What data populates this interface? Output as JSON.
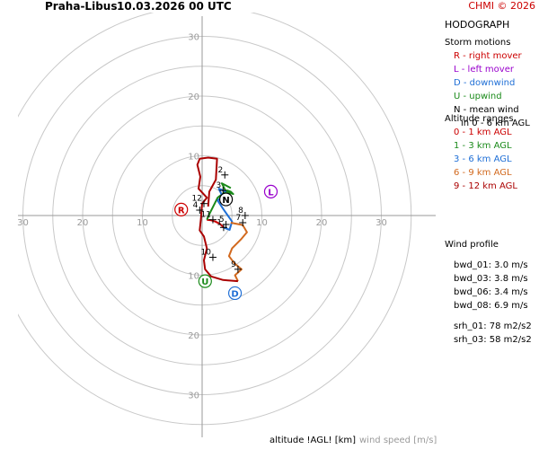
{
  "header": {
    "station": "Praha-Libus",
    "datetime": "10.03.2026 00 UTC",
    "copyright": "CHMI © 2026"
  },
  "panel": {
    "title": "HODOGRAPH",
    "storm_motions_title": "Storm motions",
    "storm_motions": [
      {
        "text": "R - right mover",
        "color": "#cc0000"
      },
      {
        "text": "L - left mover",
        "color": "#9900cc"
      },
      {
        "text": "D - downwind",
        "color": "#1f6fd6"
      },
      {
        "text": "U - upwind",
        "color": "#1a8a1a"
      },
      {
        "text": "N - mean wind",
        "color": "#000000"
      }
    ],
    "mean_wind_note": "in 0 - 6 km AGL",
    "altitude_title": "Altitude ranges",
    "altitude_ranges": [
      {
        "text": "0 - 1 km AGL",
        "color": "#cc0000"
      },
      {
        "text": "1 - 3 km AGL",
        "color": "#1a8a1a"
      },
      {
        "text": "3 - 6 km AGL",
        "color": "#1f6fd6"
      },
      {
        "text": "6 - 9 km AGL",
        "color": "#d2691e"
      },
      {
        "text": "9 - 12 km AGL",
        "color": "#aa0000"
      }
    ],
    "wind_profile_title": "Wind profile",
    "wind_profile": [
      "bwd_01: 3.0 m/s",
      "bwd_03: 3.8 m/s",
      "bwd_06: 3.4 m/s",
      "bwd_08: 6.9 m/s"
    ],
    "srh": [
      "srh_01: 78 m2/s2",
      "srh_03: 58 m2/s2"
    ]
  },
  "footer": {
    "altitude_label": "altitude !AGL! [km]",
    "wind_speed_label": "wind speed [m/s]"
  },
  "chart_data": {
    "type": "line",
    "rings": [
      5,
      10,
      15,
      20,
      25,
      30,
      35
    ],
    "ring_labels": [
      "10",
      "20",
      "30"
    ],
    "axis_tick_labels": {
      "x_left": [
        "30",
        "20",
        "10"
      ],
      "x_right": [
        "10",
        "20",
        "30"
      ],
      "y_up": [
        "10",
        "20",
        "30"
      ],
      "y_down": [
        "10",
        "20",
        "30"
      ]
    },
    "series": [
      {
        "range": "0-1",
        "color": "#cc0000",
        "points": [
          [
            0.8,
            -0.7
          ],
          [
            1.5,
            -0.8
          ],
          [
            2.2,
            -1.0
          ],
          [
            3.0,
            -1.4
          ],
          [
            3.6,
            -2.0
          ]
        ]
      },
      {
        "range": "1-3",
        "color": "#1a8a1a",
        "points": [
          [
            0.8,
            -0.7
          ],
          [
            1.3,
            0.4
          ],
          [
            2.6,
            3.0
          ],
          [
            4.2,
            4.2
          ],
          [
            4.8,
            4.0
          ],
          [
            5.2,
            3.6
          ],
          [
            4.0,
            4.0
          ],
          [
            3.3,
            5.4
          ],
          [
            4.8,
            4.6
          ]
        ]
      },
      {
        "range": "3-6",
        "color": "#1f6fd6",
        "points": [
          [
            3.6,
            -2.0
          ],
          [
            4.6,
            -2.4
          ],
          [
            5.0,
            -1.0
          ],
          [
            3.6,
            1.0
          ],
          [
            2.6,
            2.5
          ],
          [
            3.4,
            3.2
          ],
          [
            2.8,
            4.5
          ],
          [
            4.0,
            4.0
          ]
        ]
      },
      {
        "range": "6-9",
        "color": "#d2691e",
        "points": [
          [
            4.8,
            -1.2
          ],
          [
            6.8,
            -1.6
          ],
          [
            7.5,
            -2.8
          ],
          [
            6.5,
            -4.0
          ],
          [
            5.0,
            -5.5
          ],
          [
            4.5,
            -6.8
          ],
          [
            5.4,
            -8.0
          ],
          [
            6.6,
            -9.0
          ],
          [
            5.5,
            -10.0
          ],
          [
            6.0,
            -11.0
          ]
        ]
      },
      {
        "range": "9-12",
        "color": "#aa0000",
        "points": [
          [
            6.0,
            -11.0
          ],
          [
            3.5,
            -10.8
          ],
          [
            1.5,
            -10.2
          ],
          [
            0.5,
            -9.0
          ],
          [
            0.3,
            -7.5
          ],
          [
            0.8,
            -5.5
          ],
          [
            0.3,
            -3.5
          ],
          [
            -0.4,
            -2.5
          ],
          [
            -0.2,
            -0.5
          ],
          [
            0.0,
            2.0
          ],
          [
            0.8,
            3.0
          ],
          [
            -0.6,
            4.5
          ],
          [
            -0.3,
            6.5
          ],
          [
            -0.8,
            8.5
          ],
          [
            -0.4,
            9.5
          ],
          [
            1.0,
            9.7
          ],
          [
            2.5,
            9.5
          ],
          [
            2.3,
            6.0
          ],
          [
            1.2,
            4.0
          ],
          [
            1.0,
            1.5
          ]
        ]
      }
    ],
    "height_labels": [
      {
        "text": "1",
        "x": 3.6,
        "y": -2.0
      },
      {
        "text": "2",
        "x": 3.8,
        "y": 6.8
      },
      {
        "text": "3",
        "x": 3.5,
        "y": 4.2
      },
      {
        "text": "4",
        "x": -0.4,
        "y": 0.9
      },
      {
        "text": "5",
        "x": 4.0,
        "y": -1.5
      },
      {
        "text": "7",
        "x": 6.8,
        "y": -1.2
      },
      {
        "text": "8",
        "x": 7.2,
        "y": 0.0
      },
      {
        "text": "9",
        "x": 6.0,
        "y": -9.0
      },
      {
        "text": "10",
        "x": 1.8,
        "y": -7.0
      },
      {
        "text": "11",
        "x": 1.8,
        "y": -0.7
      },
      {
        "text": "12",
        "x": 0.3,
        "y": 2.0
      }
    ],
    "storm_markers": [
      {
        "letter": "R",
        "x": -3.5,
        "y": 1.0,
        "color": "#cc0000"
      },
      {
        "letter": "L",
        "x": 11.5,
        "y": 4.0,
        "color": "#9900cc"
      },
      {
        "letter": "N",
        "x": 4.0,
        "y": 2.7,
        "color": "#000000"
      },
      {
        "letter": "D",
        "x": 5.5,
        "y": -13.0,
        "color": "#1f6fd6"
      },
      {
        "letter": "U",
        "x": 0.5,
        "y": -11.0,
        "color": "#1a8a1a"
      }
    ]
  }
}
